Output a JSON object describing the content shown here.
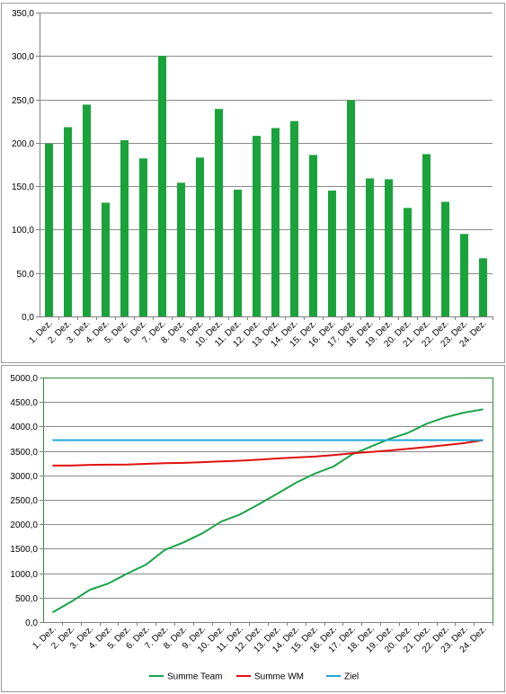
{
  "chart_data": [
    {
      "type": "bar",
      "categories": [
        "1. Dez.",
        "2. Dez.",
        "3. Dez.",
        "4. Dez.",
        "5. Dez.",
        "6. Dez.",
        "7. Dez.",
        "8. Dez.",
        "9. Dez.",
        "10. Dez.",
        "11. Dez.",
        "12. Dez.",
        "13. Dez.",
        "14. Dez.",
        "15. Dez.",
        "16. Dez.",
        "17. Dez.",
        "18. Dez.",
        "19. Dez.",
        "20. Dez.",
        "21. Dez.",
        "22. Dez.",
        "23. Dez.",
        "24. Dez."
      ],
      "values": [
        199,
        218,
        244,
        131,
        203,
        182,
        300,
        154,
        183,
        239,
        146,
        208,
        217,
        225,
        186,
        145,
        249,
        159,
        158,
        125,
        187,
        132,
        95,
        67
      ],
      "ylim": [
        0,
        350
      ],
      "yticks": [
        "0,0",
        "50,0",
        "100,0",
        "150,0",
        "200,0",
        "250,0",
        "300,0",
        "350,0"
      ],
      "grid": true,
      "color": "#1aa33a"
    },
    {
      "type": "line",
      "categories": [
        "1. Dez.",
        "2. Dez.",
        "3. Dez.",
        "4. Dez.",
        "5. Dez.",
        "6. Dez.",
        "7. Dez.",
        "8. Dez.",
        "9. Dez.",
        "10. Dez.",
        "11. Dez.",
        "12. Dez.",
        "13. Dez.",
        "14. Dez.",
        "15. Dez.",
        "16. Dez.",
        "17. Dez.",
        "18. Dez.",
        "19. Dez.",
        "20. Dez.",
        "21. Dez.",
        "22. Dez.",
        "23. Dez.",
        "24. Dez."
      ],
      "series": [
        {
          "name": "Summe Team",
          "color": "#1aa34a",
          "values": [
            199,
            417,
            661,
            792,
            995,
            1177,
            1477,
            1631,
            1814,
            2053,
            2199,
            2407,
            2624,
            2849,
            3035,
            3180,
            3429,
            3588,
            3746,
            3871,
            4058,
            4190,
            4285,
            4352
          ]
        },
        {
          "name": "Summe WM",
          "color": "#e01010",
          "values": [
            3200,
            3200,
            3215,
            3218,
            3220,
            3235,
            3250,
            3255,
            3270,
            3285,
            3300,
            3320,
            3345,
            3365,
            3385,
            3415,
            3450,
            3480,
            3510,
            3545,
            3580,
            3620,
            3660,
            3720
          ]
        },
        {
          "name": "Ziel",
          "color": "#22a7d8",
          "values": [
            3720,
            3720,
            3720,
            3720,
            3720,
            3720,
            3720,
            3720,
            3720,
            3720,
            3720,
            3720,
            3720,
            3720,
            3720,
            3720,
            3720,
            3720,
            3720,
            3720,
            3720,
            3720,
            3720,
            3720
          ]
        }
      ],
      "ylim": [
        0,
        5000
      ],
      "yticks": [
        "0,0",
        "500,0",
        "1000,0",
        "1500,0",
        "2000,0",
        "2500,0",
        "3000,0",
        "3500,0",
        "4000,0",
        "4500,0",
        "5000,0"
      ],
      "grid": true,
      "legend": "bottom"
    }
  ]
}
